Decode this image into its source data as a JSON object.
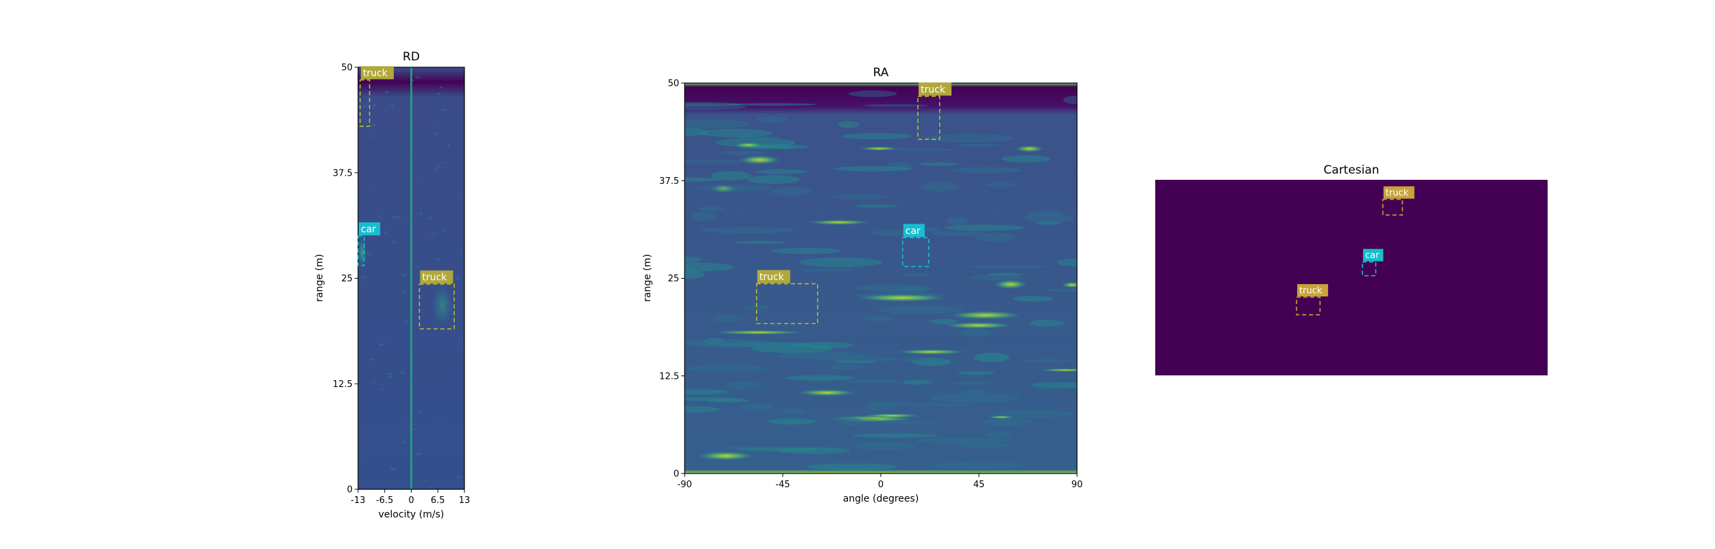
{
  "colors": {
    "viridis_dark": "#440154",
    "viridis_blue": "#3b528b",
    "viridis_teal": "#21918c",
    "viridis_green": "#5ec962",
    "viridis_yellow": "#fde725",
    "truck": "#bcbd22",
    "car": "#17becf",
    "truck_label_bg": "#b0a83a",
    "cartesian_truck": "#c8a43a"
  },
  "chart_data": [
    {
      "type": "heatmap",
      "title": "RD",
      "xlabel": "velocity (m/s)",
      "ylabel": "range (m)",
      "xlim": [
        -13,
        13
      ],
      "ylim": [
        0,
        50
      ],
      "xticks": [
        "-13",
        "-6.5",
        "0",
        "6.5",
        "13"
      ],
      "xtick_values": [
        -13,
        -6.5,
        0,
        6.5,
        13
      ],
      "yticks": [
        "0",
        "12.5",
        "25",
        "37.5",
        "50"
      ],
      "ytick_values": [
        0,
        12.5,
        25,
        37.5,
        50
      ],
      "colormap": "viridis",
      "boxes": [
        {
          "label": "truck",
          "x": [
            -12.5,
            -10.2
          ],
          "y": [
            43,
            48.5
          ],
          "color": "truck"
        },
        {
          "label": "car",
          "x": [
            -13,
            -11.5
          ],
          "y": [
            26.5,
            30
          ],
          "color": "car"
        },
        {
          "label": "truck",
          "x": [
            2,
            10.5
          ],
          "y": [
            19,
            24.3
          ],
          "color": "truck"
        }
      ]
    },
    {
      "type": "heatmap",
      "title": "RA",
      "xlabel": "angle (degrees)",
      "ylabel": "range (m)",
      "xlim": [
        -90,
        90
      ],
      "ylim": [
        0,
        50
      ],
      "xticks": [
        "-90",
        "-45",
        "0",
        "45",
        "90"
      ],
      "xtick_values": [
        -90,
        -45,
        0,
        45,
        90
      ],
      "yticks": [
        "0",
        "12.5",
        "25",
        "37.5",
        "50"
      ],
      "ytick_values": [
        0,
        12.5,
        25,
        37.5,
        50
      ],
      "colormap": "viridis",
      "boxes": [
        {
          "label": "truck",
          "x": [
            17,
            27
          ],
          "y": [
            42.8,
            48.3
          ],
          "color": "truck"
        },
        {
          "label": "car",
          "x": [
            10,
            22
          ],
          "y": [
            26.5,
            30.2
          ],
          "color": "car"
        },
        {
          "label": "truck",
          "x": [
            -57,
            -29
          ],
          "y": [
            19.2,
            24.3
          ],
          "color": "truck"
        }
      ]
    },
    {
      "type": "heatmap",
      "title": "Cartesian",
      "xlabel": "",
      "ylabel": "",
      "xlim": [
        0,
        1
      ],
      "ylim": [
        0,
        1
      ],
      "fill": "viridis_dark",
      "boxes": [
        {
          "label": "truck",
          "x": [
            0.58,
            0.63
          ],
          "y": [
            0.82,
            0.9
          ],
          "color": "cartesian_truck"
        },
        {
          "label": "car",
          "x": [
            0.528,
            0.562
          ],
          "y": [
            0.51,
            0.58
          ],
          "color": "car"
        },
        {
          "label": "truck",
          "x": [
            0.36,
            0.42
          ],
          "y": [
            0.31,
            0.4
          ],
          "color": "cartesian_truck"
        }
      ]
    }
  ]
}
